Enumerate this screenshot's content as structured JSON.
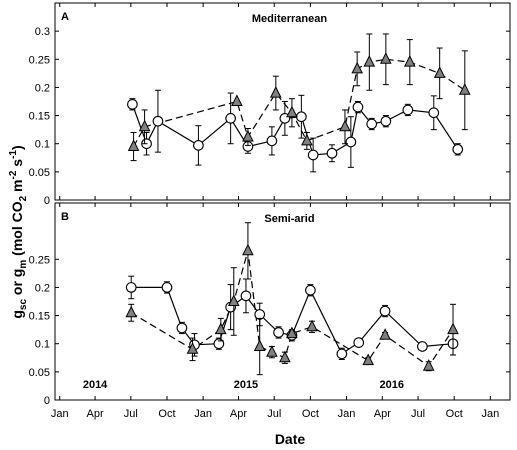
{
  "chart_data": {
    "type": "line",
    "shared_ylabel": "g_sc or g_m (mol CO_2 m^-2 s^-1)",
    "ylabel_parts": {
      "g1": "g",
      "sub1": "sc",
      "or": " or ",
      "g2": "g",
      "sub2": "m",
      "open": " (mol CO",
      "sub3": "2",
      "m": " m",
      "sup1": "-2",
      "s": " s",
      "sup2": "-1",
      "close": ")"
    },
    "xlabel": "Date",
    "x_ticks": [
      "Jan",
      "Apr",
      "Jul",
      "Oct",
      "Jan",
      "Apr",
      "Jul",
      "Oct",
      "Jan",
      "Apr",
      "Jul",
      "Oct",
      "Jan"
    ],
    "year_labels": [
      "2014",
      "2015",
      "2016"
    ],
    "panels": [
      {
        "letter": "A",
        "title": "Mediterranean",
        "ylim": [
          0,
          0.35
        ],
        "yticks": [
          "0",
          "0.05",
          "0.1",
          "0.15",
          "0.2",
          "0.25",
          "0.3"
        ],
        "series": [
          {
            "marker": "circle",
            "line": "solid",
            "points": [
              {
                "x": "2014-07-05",
                "y": 0.17,
                "err": 0.01
              },
              {
                "x": "2014-08-10",
                "y": 0.1,
                "err": 0.02
              },
              {
                "x": "2014-09-08",
                "y": 0.14,
                "err": 0.055
              },
              {
                "x": "2014-12-20",
                "y": 0.097,
                "err": 0.035
              },
              {
                "x": "2015-03-12",
                "y": 0.145,
                "err": 0.045
              },
              {
                "x": "2015-04-25",
                "y": 0.095,
                "err": 0.012
              },
              {
                "x": "2015-06-25",
                "y": 0.105,
                "err": 0.025
              },
              {
                "x": "2015-07-28",
                "y": 0.145,
                "err": 0.03
              },
              {
                "x": "2015-09-08",
                "y": 0.148,
                "err": 0.038
              },
              {
                "x": "2015-10-08",
                "y": 0.08,
                "err": 0.03
              },
              {
                "x": "2015-11-25",
                "y": 0.083,
                "err": 0.015
              },
              {
                "x": "2016-01-12",
                "y": 0.103,
                "err": 0.045
              },
              {
                "x": "2016-01-30",
                "y": 0.165,
                "err": 0.01
              },
              {
                "x": "2016-03-05",
                "y": 0.135,
                "err": 0.01
              },
              {
                "x": "2016-04-10",
                "y": 0.14,
                "err": 0.01
              },
              {
                "x": "2016-06-05",
                "y": 0.16,
                "err": 0.01
              },
              {
                "x": "2016-08-10",
                "y": 0.155,
                "err": 0.03
              },
              {
                "x": "2016-10-10",
                "y": 0.09,
                "err": 0.01
              }
            ]
          },
          {
            "marker": "triangle",
            "line": "dashed",
            "points": [
              {
                "x": "2014-07-08",
                "y": 0.095,
                "err": 0.025
              },
              {
                "x": "2014-08-05",
                "y": 0.13,
                "err": 0.03
              },
              {
                "x": "2015-03-28",
                "y": 0.175,
                "err": 0.0
              },
              {
                "x": "2015-04-25",
                "y": 0.112,
                "err": 0.015
              },
              {
                "x": "2015-07-05",
                "y": 0.19,
                "err": 0.03
              },
              {
                "x": "2015-08-15",
                "y": 0.155,
                "err": 0.025
              },
              {
                "x": "2015-09-22",
                "y": 0.105,
                "err": 0.015
              },
              {
                "x": "2015-12-28",
                "y": 0.13,
                "err": 0.03
              },
              {
                "x": "2016-01-28",
                "y": 0.233,
                "err": 0.03
              },
              {
                "x": "2016-02-28",
                "y": 0.245,
                "err": 0.05
              },
              {
                "x": "2016-04-10",
                "y": 0.25,
                "err": 0.045
              },
              {
                "x": "2016-06-10",
                "y": 0.245,
                "err": 0.04
              },
              {
                "x": "2016-08-25",
                "y": 0.225,
                "err": 0.045
              },
              {
                "x": "2016-10-28",
                "y": 0.195,
                "err": 0.07
              }
            ]
          }
        ]
      },
      {
        "letter": "B",
        "title": "Semi-arid",
        "ylim": [
          0,
          0.35
        ],
        "yticks": [
          "0",
          "0.05",
          "0.1",
          "0.15",
          "0.2",
          "0.25"
        ],
        "series": [
          {
            "marker": "circle",
            "line": "solid",
            "points": [
              {
                "x": "2014-07-02",
                "y": 0.2,
                "err": 0.02
              },
              {
                "x": "2014-10-01",
                "y": 0.2,
                "err": 0.01
              },
              {
                "x": "2014-11-08",
                "y": 0.128,
                "err": 0.01
              },
              {
                "x": "2014-12-10",
                "y": 0.098,
                "err": 0.02
              },
              {
                "x": "2015-02-10",
                "y": 0.1,
                "err": 0.01
              },
              {
                "x": "2015-03-12",
                "y": 0.165,
                "err": 0.04
              },
              {
                "x": "2015-04-20",
                "y": 0.185,
                "err": 0.03
              },
              {
                "x": "2015-05-25",
                "y": 0.152,
                "err": 0.02
              },
              {
                "x": "2015-07-12",
                "y": 0.12,
                "err": 0.01
              },
              {
                "x": "2015-08-15",
                "y": 0.115,
                "err": 0.01
              },
              {
                "x": "2015-10-01",
                "y": 0.195,
                "err": 0.01
              },
              {
                "x": "2015-12-20",
                "y": 0.082,
                "err": 0.01
              },
              {
                "x": "2016-02-01",
                "y": 0.102,
                "err": 0.005
              },
              {
                "x": "2016-04-08",
                "y": 0.158,
                "err": 0.01
              },
              {
                "x": "2016-07-12",
                "y": 0.095,
                "err": 0.005
              },
              {
                "x": "2016-09-28",
                "y": 0.1,
                "err": 0.02
              }
            ]
          },
          {
            "marker": "triangle",
            "line": "dashed",
            "points": [
              {
                "x": "2014-07-02",
                "y": 0.155,
                "err": 0.015
              },
              {
                "x": "2014-12-05",
                "y": 0.09,
                "err": 0.02
              },
              {
                "x": "2015-02-15",
                "y": 0.125,
                "err": 0.02
              },
              {
                "x": "2015-03-20",
                "y": 0.175,
                "err": 0.06
              },
              {
                "x": "2015-04-25",
                "y": 0.265,
                "err": 0.05
              },
              {
                "x": "2015-05-25",
                "y": 0.095,
                "err": 0.05
              },
              {
                "x": "2015-06-25",
                "y": 0.085,
                "err": 0.01
              },
              {
                "x": "2015-07-28",
                "y": 0.075,
                "err": 0.01
              },
              {
                "x": "2015-08-15",
                "y": 0.118,
                "err": 0.005
              },
              {
                "x": "2015-10-05",
                "y": 0.13,
                "err": 0.01
              },
              {
                "x": "2016-02-25",
                "y": 0.07,
                "err": 0.005
              },
              {
                "x": "2016-04-08",
                "y": 0.115,
                "err": 0.005
              },
              {
                "x": "2016-07-28",
                "y": 0.06,
                "err": 0.008
              },
              {
                "x": "2016-09-28",
                "y": 0.125,
                "err": 0.045
              }
            ]
          }
        ]
      }
    ]
  }
}
